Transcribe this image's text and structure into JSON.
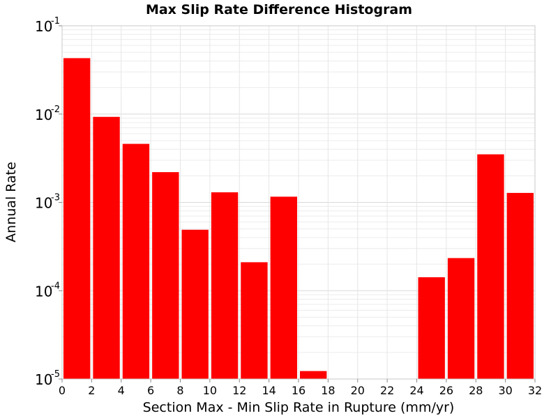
{
  "chart_data": {
    "type": "bar",
    "title": "Max Slip Rate Difference Histogram",
    "xlabel": "Section Max - Min Slip Rate in Rupture (mm/yr)",
    "ylabel": "Annual Rate",
    "xlim": [
      0,
      32
    ],
    "ylim": [
      1e-05,
      0.1
    ],
    "yscale": "log",
    "grid": true,
    "bar_color": "#ff0000",
    "bin_width": 2,
    "x_ticks": [
      "0",
      "2",
      "4",
      "6",
      "8",
      "10",
      "12",
      "14",
      "16",
      "18",
      "20",
      "22",
      "24",
      "26",
      "28",
      "30",
      "32"
    ],
    "y_ticks": [
      {
        "value": 0.1,
        "base": "10",
        "exp": "-1"
      },
      {
        "value": 0.01,
        "base": "10",
        "exp": "-2"
      },
      {
        "value": 0.001,
        "base": "10",
        "exp": "-3"
      },
      {
        "value": 0.0001,
        "base": "10",
        "exp": "-4"
      },
      {
        "value": 1e-05,
        "base": "10",
        "exp": "-5"
      }
    ],
    "bins": [
      {
        "x_start": 0,
        "value": 0.043
      },
      {
        "x_start": 2,
        "value": 0.0093
      },
      {
        "x_start": 4,
        "value": 0.0046
      },
      {
        "x_start": 6,
        "value": 0.0022
      },
      {
        "x_start": 8,
        "value": 0.00049
      },
      {
        "x_start": 10,
        "value": 0.0013
      },
      {
        "x_start": 12,
        "value": 0.00021
      },
      {
        "x_start": 14,
        "value": 0.00116
      },
      {
        "x_start": 16,
        "value": 1.23e-05
      },
      {
        "x_start": 24,
        "value": 0.000142
      },
      {
        "x_start": 26,
        "value": 0.000234
      },
      {
        "x_start": 28,
        "value": 0.0035
      },
      {
        "x_start": 30,
        "value": 0.00128
      }
    ]
  }
}
